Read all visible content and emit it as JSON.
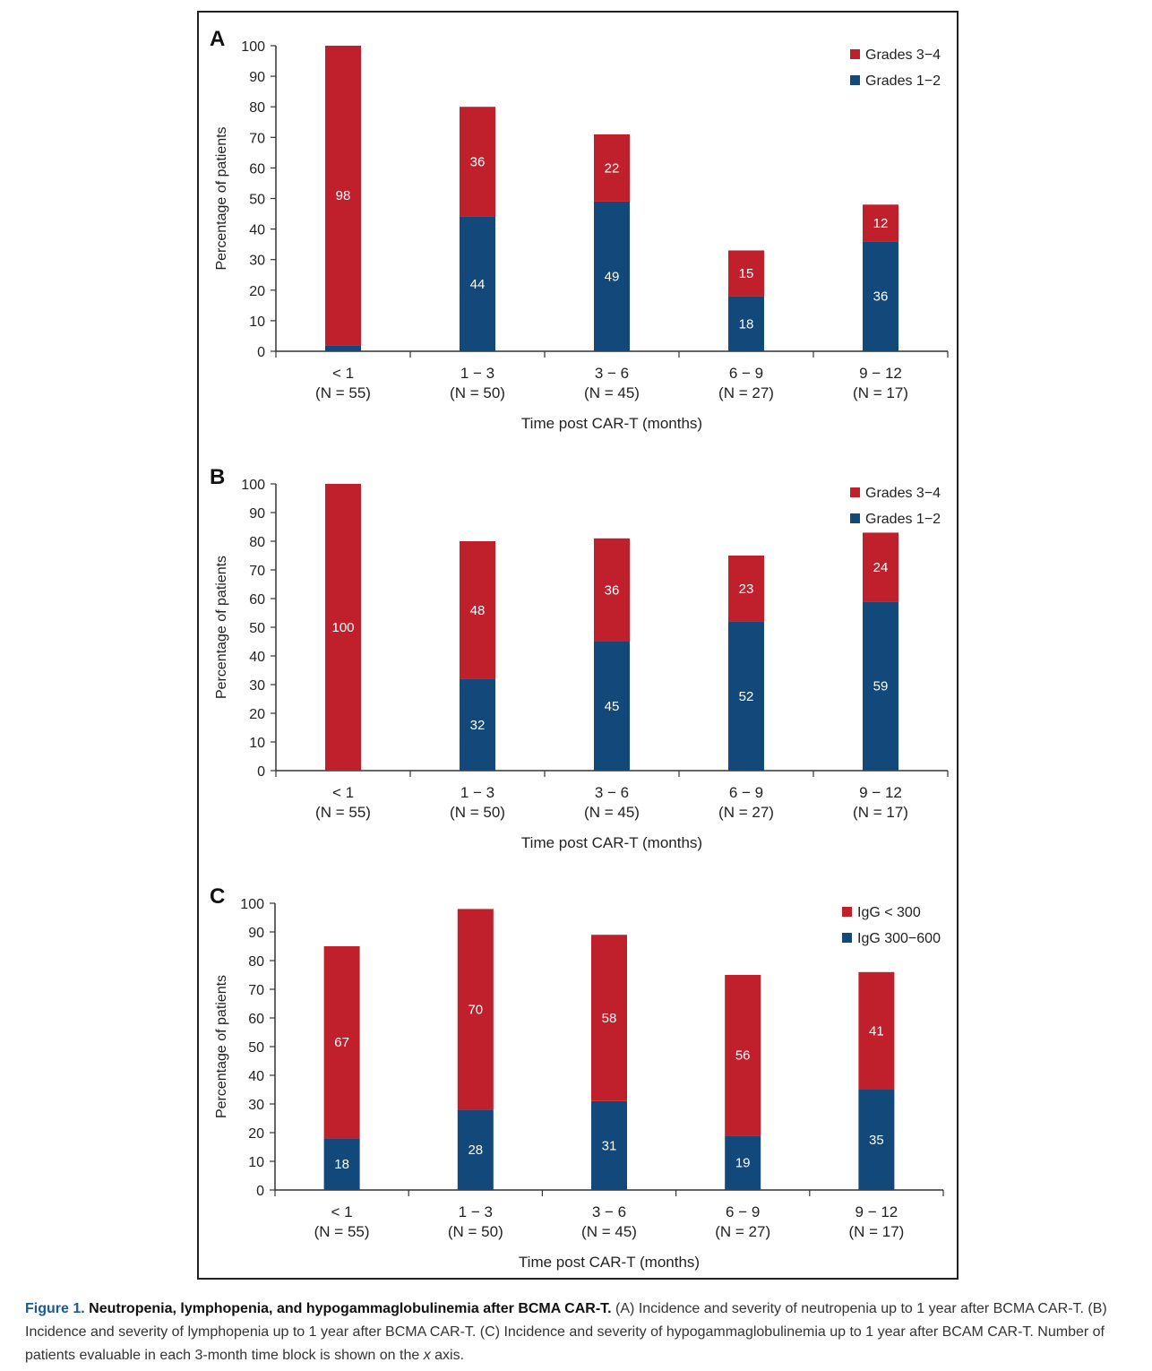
{
  "colors": {
    "red": "#c0202b",
    "blue": "#12487a",
    "axis": "#333333"
  },
  "figure": {
    "label": "Figure 1.",
    "title": "Neutropenia, lymphopenia, and hypogammaglobulinemia after BCMA CAR-T.",
    "caption_text": " (A) Incidence and severity of neutropenia up to 1 year after BCMA CAR-T. (B) Incidence and severity of lymphopenia up to 1 year after BCMA CAR-T. (C) Incidence and severity of hypogammaglobulinemia up to 1 year after BCAM CAR-T. Number of patients evaluable in each 3-month time block is shown on the ",
    "caption_italic": "x",
    "caption_end": " axis."
  },
  "chart_data": [
    {
      "panel": "A",
      "type": "bar",
      "stacked": true,
      "xlabel": "Time post CAR-T (months)",
      "ylabel": "Percentage of patients",
      "ylim": [
        0,
        100
      ],
      "yticks": [
        0,
        10,
        20,
        30,
        40,
        50,
        60,
        70,
        80,
        90,
        100
      ],
      "categories": [
        "< 1",
        "1 − 3",
        "3 − 6",
        "6 − 9",
        "9 − 12"
      ],
      "category_n": [
        "(N = 55)",
        "(N = 50)",
        "(N = 45)",
        "(N = 27)",
        "(N = 17)"
      ],
      "legend_position": "top-right",
      "series": [
        {
          "name": "Grades 1−2",
          "color": "#12487a",
          "values": [
            2,
            44,
            49,
            18,
            36
          ],
          "labels": [
            "",
            "44",
            "49",
            "18",
            "36"
          ]
        },
        {
          "name": "Grades 3−4",
          "color": "#c0202b",
          "values": [
            98,
            36,
            22,
            15,
            12
          ],
          "labels": [
            "98",
            "36",
            "22",
            "15",
            "12"
          ]
        }
      ]
    },
    {
      "panel": "B",
      "type": "bar",
      "stacked": true,
      "xlabel": "Time post CAR-T (months)",
      "ylabel": "Percentage of patients",
      "ylim": [
        0,
        100
      ],
      "yticks": [
        0,
        10,
        20,
        30,
        40,
        50,
        60,
        70,
        80,
        90,
        100
      ],
      "categories": [
        "< 1",
        "1 − 3",
        "3 − 6",
        "6 − 9",
        "9 − 12"
      ],
      "category_n": [
        "(N = 55)",
        "(N = 50)",
        "(N = 45)",
        "(N = 27)",
        "(N = 17)"
      ],
      "legend_position": "top-right",
      "series": [
        {
          "name": "Grades 1−2",
          "color": "#12487a",
          "values": [
            0,
            32,
            45,
            52,
            59
          ],
          "labels": [
            "",
            "32",
            "45",
            "52",
            "59"
          ]
        },
        {
          "name": "Grades 3−4",
          "color": "#c0202b",
          "values": [
            100,
            48,
            36,
            23,
            24
          ],
          "labels": [
            "100",
            "48",
            "36",
            "23",
            "24"
          ]
        }
      ]
    },
    {
      "panel": "C",
      "type": "bar",
      "stacked": true,
      "xlabel": "Time post CAR-T (months)",
      "ylabel": "Percentage of patients",
      "ylim": [
        0,
        100
      ],
      "yticks": [
        0,
        10,
        20,
        30,
        40,
        50,
        60,
        70,
        80,
        90,
        100
      ],
      "categories": [
        "< 1",
        "1 − 3",
        "3 − 6",
        "6 − 9",
        "9 − 12"
      ],
      "category_n": [
        "(N = 55)",
        "(N = 50)",
        "(N = 45)",
        "(N = 27)",
        "(N = 17)"
      ],
      "legend_position": "top-right",
      "series": [
        {
          "name": "IgG 300−600",
          "color": "#12487a",
          "values": [
            18,
            28,
            31,
            19,
            35
          ],
          "labels": [
            "18",
            "28",
            "31",
            "19",
            "35"
          ]
        },
        {
          "name": "IgG < 300",
          "color": "#c0202b",
          "values": [
            67,
            70,
            58,
            56,
            41
          ],
          "labels": [
            "67",
            "70",
            "58",
            "56",
            "41"
          ]
        }
      ]
    }
  ]
}
